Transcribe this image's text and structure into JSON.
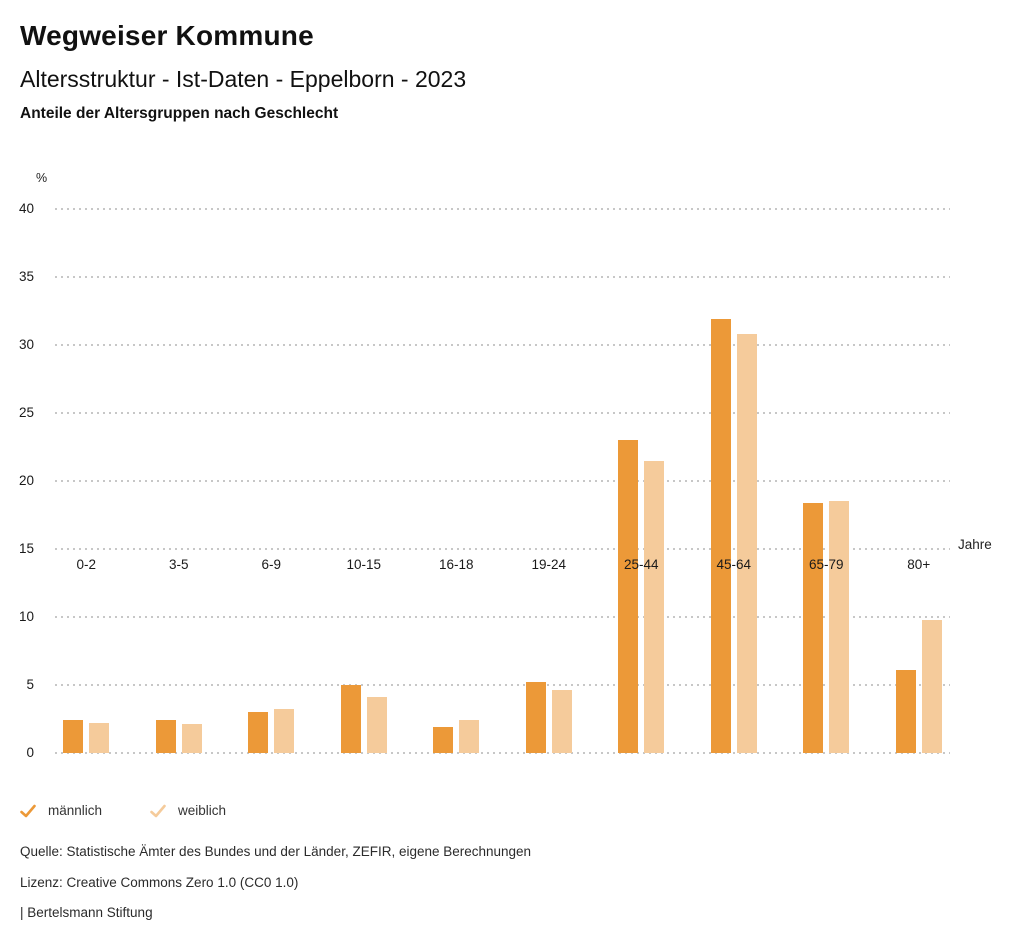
{
  "header": {
    "title": "Wegweiser Kommune",
    "subtitle": "Altersstruktur - Ist-Daten - Eppelborn - 2023",
    "caption": "Anteile der Altersgruppen nach Geschlecht"
  },
  "chart_data": {
    "type": "bar",
    "title": "Anteile der Altersgruppen nach Geschlecht",
    "y_unit": "%",
    "x_unit": "Jahre",
    "categories": [
      "0-2",
      "3-5",
      "6-9",
      "10-15",
      "16-18",
      "19-24",
      "25-44",
      "45-64",
      "65-79",
      "80+"
    ],
    "series": [
      {
        "name": "männlich",
        "color": "#EC9938",
        "values": [
          2.4,
          2.4,
          3.0,
          5.0,
          1.9,
          5.2,
          23.0,
          31.9,
          18.4,
          6.1
        ]
      },
      {
        "name": "weiblich",
        "color": "#F5CB9B",
        "values": [
          2.2,
          2.1,
          3.2,
          4.1,
          2.4,
          4.6,
          21.5,
          30.8,
          18.5,
          9.8
        ]
      }
    ],
    "ylim": [
      0,
      40
    ],
    "yticks": [
      0,
      5,
      10,
      15,
      20,
      25,
      30,
      35,
      40
    ],
    "grid": "horizontal-dotted",
    "legend_position": "bottom-left"
  },
  "legend": {
    "items": [
      {
        "label": "männlich",
        "color": "#EC9938",
        "checked": true
      },
      {
        "label": "weiblich",
        "color": "#F5CB9B",
        "checked": true
      }
    ]
  },
  "footer": {
    "source": "Quelle: Statistische Ämter des Bundes und der Länder, ZEFIR, eigene Berechnungen",
    "license": "Lizenz: Creative Commons Zero 1.0 (CC0 1.0)",
    "attribution": "| Bertelsmann Stiftung"
  }
}
